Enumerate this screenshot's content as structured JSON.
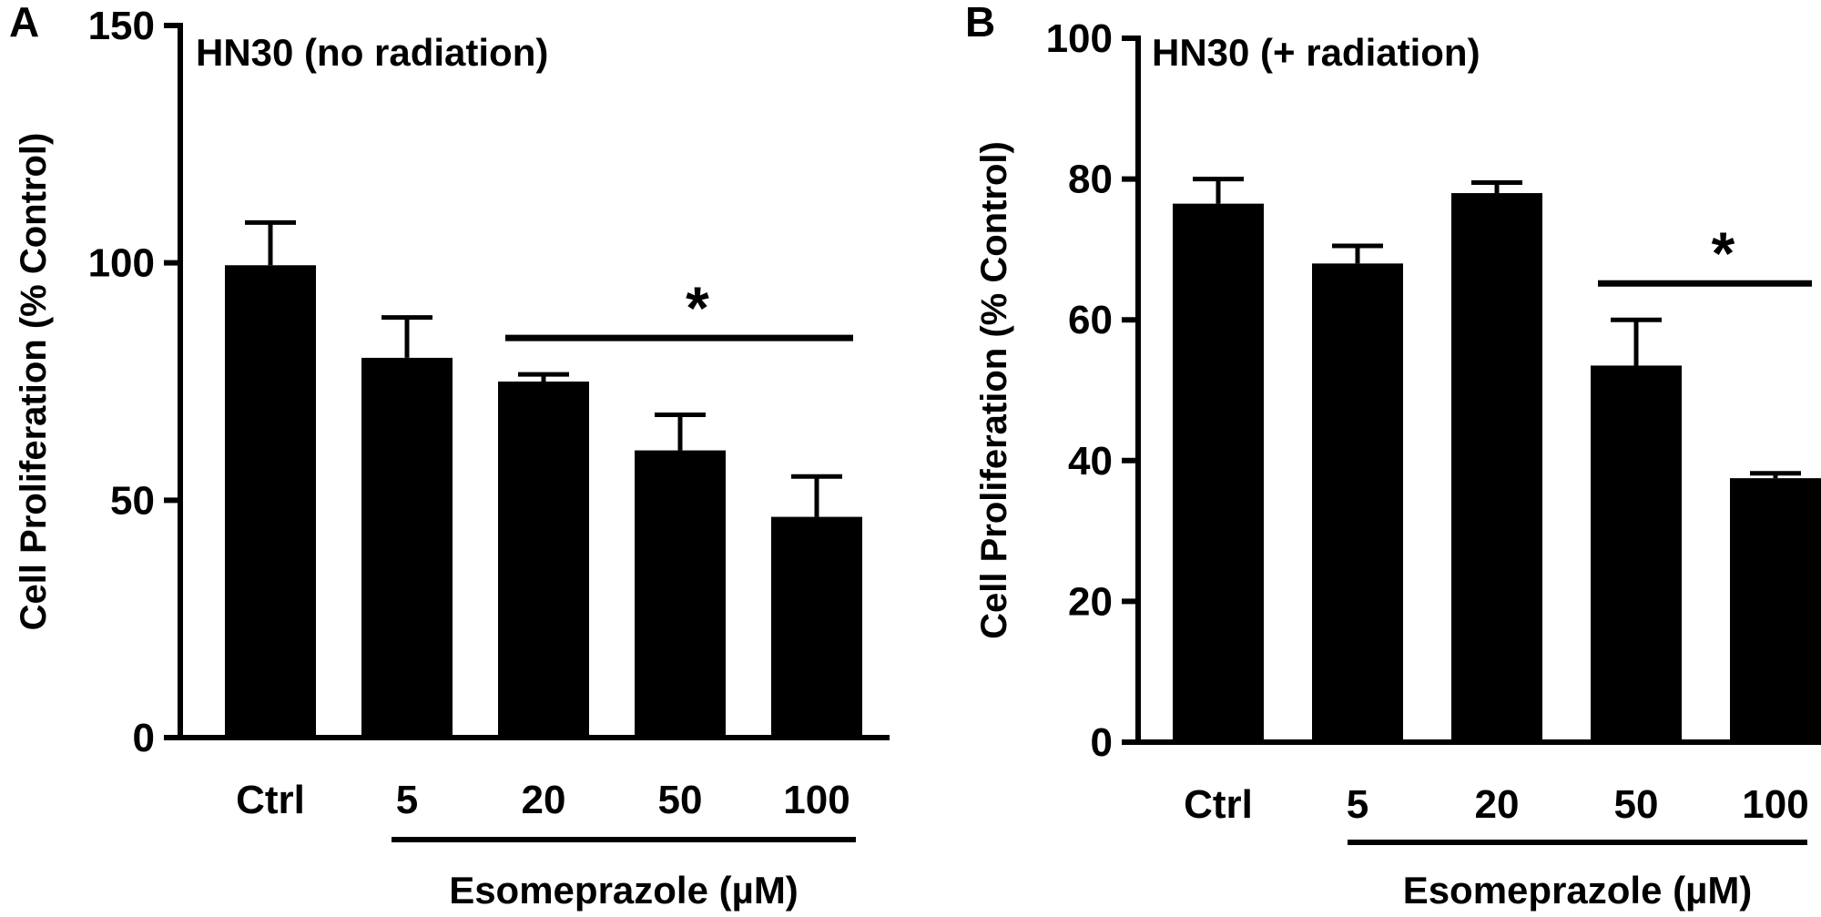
{
  "chart_data": [
    {
      "type": "bar",
      "panel_label": "A",
      "title": "HN30 (no radiation)",
      "ylabel": "Cell Proliferation (% Control)",
      "xlabel": "Esomeprazole (µM)",
      "categories": [
        "Ctrl",
        "5",
        "20",
        "50",
        "100"
      ],
      "values": [
        99.5,
        80,
        75,
        60.5,
        46.5
      ],
      "errors": [
        9,
        8.5,
        1.5,
        7.5,
        8.5
      ],
      "ylim": [
        0,
        150
      ],
      "yticks": [
        "0",
        "50",
        "100",
        "150"
      ],
      "bar_color": "#000000",
      "grid": false,
      "significance": {
        "label": "*",
        "from_category": "20",
        "to_category": "100"
      },
      "xlabel_spans_categories": [
        "5",
        "100"
      ]
    },
    {
      "type": "bar",
      "panel_label": "B",
      "title": "HN30 (+ radiation)",
      "ylabel": "Cell Proliferation (% Control)",
      "xlabel": "Esomeprazole (µM)",
      "categories": [
        "Ctrl",
        "5",
        "20",
        "50",
        "100"
      ],
      "values": [
        76.5,
        68,
        78,
        53.5,
        37.5
      ],
      "errors": [
        3.5,
        2.5,
        1.5,
        6.5,
        0.7
      ],
      "ylim": [
        0,
        100
      ],
      "yticks": [
        "0",
        "20",
        "40",
        "60",
        "80",
        "100"
      ],
      "bar_color": "#000000",
      "grid": false,
      "significance": {
        "label": "*",
        "from_category": "50",
        "to_category": "100"
      },
      "xlabel_spans_categories": [
        "5",
        "100"
      ]
    }
  ]
}
